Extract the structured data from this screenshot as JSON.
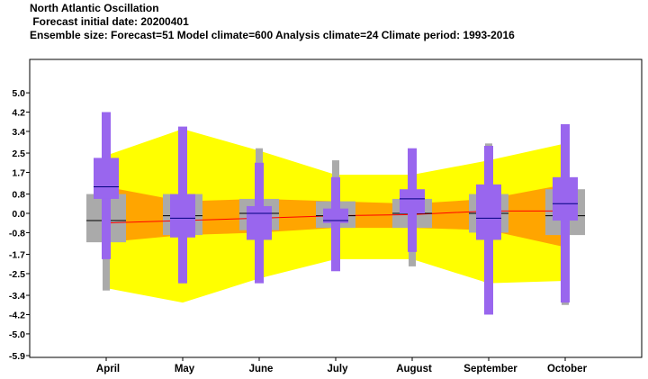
{
  "header": {
    "title": "North Atlantic Oscillation",
    "subtitle": " Forecast initial date: 20200401",
    "info": "Ensemble size: Forecast=51 Model climate=600 Analysis climate=24   Climate period: 1993-2016"
  },
  "colors": {
    "model_outer": "#ffff00",
    "model_inner": "#ffa500",
    "analysis_box": "#aaaaaa",
    "forecast_box": "#9966ee",
    "median_line": "#000080",
    "analysis_median_line": "#000000",
    "forecast_median_trend": "#ff0000"
  },
  "chart_data": {
    "type": "box",
    "categories": [
      "April",
      "May",
      "June",
      "July",
      "August",
      "September",
      "October"
    ],
    "y_ticks": [
      "5.0",
      "4.2",
      "3.4",
      "2.5",
      "1.7",
      "0.8",
      "0.0",
      "-0.8",
      "-1.7",
      "-2.5",
      "-3.4",
      "-4.2",
      "-5.0",
      "-5.9"
    ],
    "ylim": [
      -5.9,
      5.9
    ],
    "model_climate_band": {
      "outer_upper": [
        2.4,
        3.5,
        2.6,
        1.6,
        1.6,
        2.2,
        2.9
      ],
      "outer_lower": [
        -3.1,
        -3.7,
        -2.7,
        -1.9,
        -1.9,
        -2.9,
        -2.8
      ],
      "inner_upper": [
        1.1,
        0.5,
        0.6,
        0.5,
        0.4,
        0.6,
        1.2
      ],
      "inner_lower": [
        -1.2,
        -0.9,
        -0.8,
        -0.6,
        -0.6,
        -0.7,
        -1.4
      ]
    },
    "analysis_climate": [
      {
        "whisker_low": -3.2,
        "q1": -1.2,
        "median": -0.3,
        "q3": 0.8,
        "whisker_high": 4.0
      },
      {
        "whisker_low": -2.9,
        "q1": -0.9,
        "median": -0.1,
        "q3": 0.8,
        "whisker_high": 3.1
      },
      {
        "whisker_low": -2.4,
        "q1": -0.7,
        "median": 0.0,
        "q3": 0.6,
        "whisker_high": 2.7
      },
      {
        "whisker_low": -2.0,
        "q1": -0.6,
        "median": -0.1,
        "q3": 0.5,
        "whisker_high": 2.2
      },
      {
        "whisker_low": -2.2,
        "q1": -0.6,
        "median": 0.0,
        "q3": 0.6,
        "whisker_high": 2.1
      },
      {
        "whisker_low": -2.7,
        "q1": -0.8,
        "median": 0.0,
        "q3": 0.8,
        "whisker_high": 2.9
      },
      {
        "whisker_low": -3.8,
        "q1": -0.9,
        "median": -0.1,
        "q3": 1.0,
        "whisker_high": 2.6
      }
    ],
    "forecast": [
      {
        "whisker_low": -1.9,
        "q1": 0.6,
        "median": 1.1,
        "q3": 2.3,
        "whisker_high": 4.2
      },
      {
        "whisker_low": -2.9,
        "q1": -1.0,
        "median": -0.2,
        "q3": 0.8,
        "whisker_high": 3.6
      },
      {
        "whisker_low": -2.9,
        "q1": -1.1,
        "median": 0.0,
        "q3": 0.3,
        "whisker_high": 2.1
      },
      {
        "whisker_low": -2.4,
        "q1": -0.4,
        "median": -0.3,
        "q3": 0.2,
        "whisker_high": 1.5
      },
      {
        "whisker_low": -1.6,
        "q1": 0.0,
        "median": 0.6,
        "q3": 1.0,
        "whisker_high": 2.7
      },
      {
        "whisker_low": -4.2,
        "q1": -1.1,
        "median": -0.2,
        "q3": 1.2,
        "whisker_high": 2.8
      },
      {
        "whisker_low": -3.7,
        "q1": -0.3,
        "median": 0.4,
        "q3": 1.5,
        "whisker_high": 3.7
      }
    ],
    "forecast_median_trend": [
      -0.4,
      -0.3,
      -0.2,
      -0.1,
      -0.05,
      0.1,
      0.1
    ],
    "grid": false,
    "legend": "none"
  }
}
